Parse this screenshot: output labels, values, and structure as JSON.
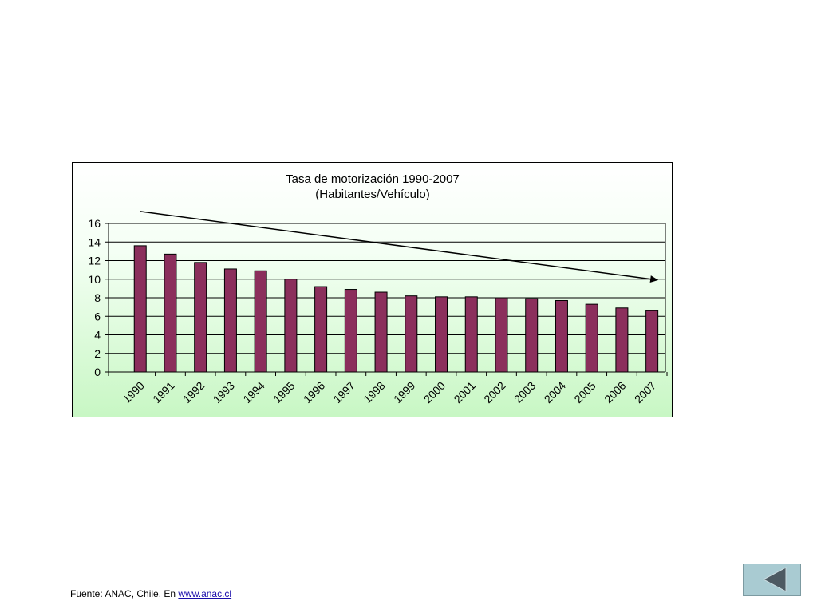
{
  "chart_data": {
    "type": "bar",
    "title": "Tasa de motorización 1990-2007",
    "subtitle": "(Habitantes/Vehículo)",
    "categories": [
      "1990",
      "1991",
      "1992",
      "1993",
      "1994",
      "1995",
      "1996",
      "1997",
      "1998",
      "1999",
      "2000",
      "2001",
      "2002",
      "2003",
      "2004",
      "2005",
      "2006",
      "2007"
    ],
    "values": [
      13.6,
      12.7,
      11.8,
      11.1,
      10.9,
      10.0,
      9.2,
      8.9,
      8.6,
      8.2,
      8.1,
      8.1,
      8.0,
      7.9,
      7.7,
      7.3,
      6.9,
      6.6
    ],
    "ylim": [
      0,
      16
    ],
    "yticks": [
      "0",
      "2",
      "4",
      "6",
      "8",
      "10",
      "12",
      "14",
      "16"
    ],
    "grid": true,
    "bar_color": "#8b2f5c",
    "trend_arrow": {
      "from": [
        1990,
        17.3
      ],
      "to": [
        2007,
        9.9
      ]
    }
  },
  "footer": {
    "source_text": "Fuente: ANAC, Chile. En ",
    "source_link": "www.anac.cl"
  },
  "nav": {
    "back_icon": "back-arrow-icon"
  }
}
